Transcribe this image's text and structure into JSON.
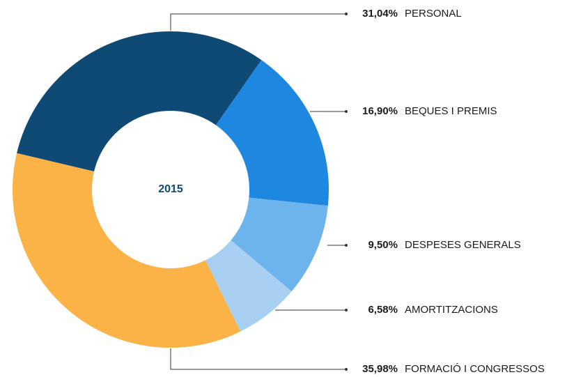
{
  "chart_data": {
    "type": "donut",
    "center_label": "2015",
    "categories": [
      "PERSONAL",
      "BEQUES I PREMIS",
      "DESPESES GENERALS",
      "AMORTITZACIONS",
      "FORMACIÓ I CONGRESSOS"
    ],
    "values": [
      31.04,
      16.9,
      9.5,
      6.58,
      35.98
    ],
    "value_labels": [
      "31,04%",
      "16,90%",
      "9,50%",
      "6,58%",
      "35,98%"
    ],
    "colors": [
      "#0f4a74",
      "#1e88e0",
      "#6db3ec",
      "#a7d0f3",
      "#fbb246"
    ]
  }
}
